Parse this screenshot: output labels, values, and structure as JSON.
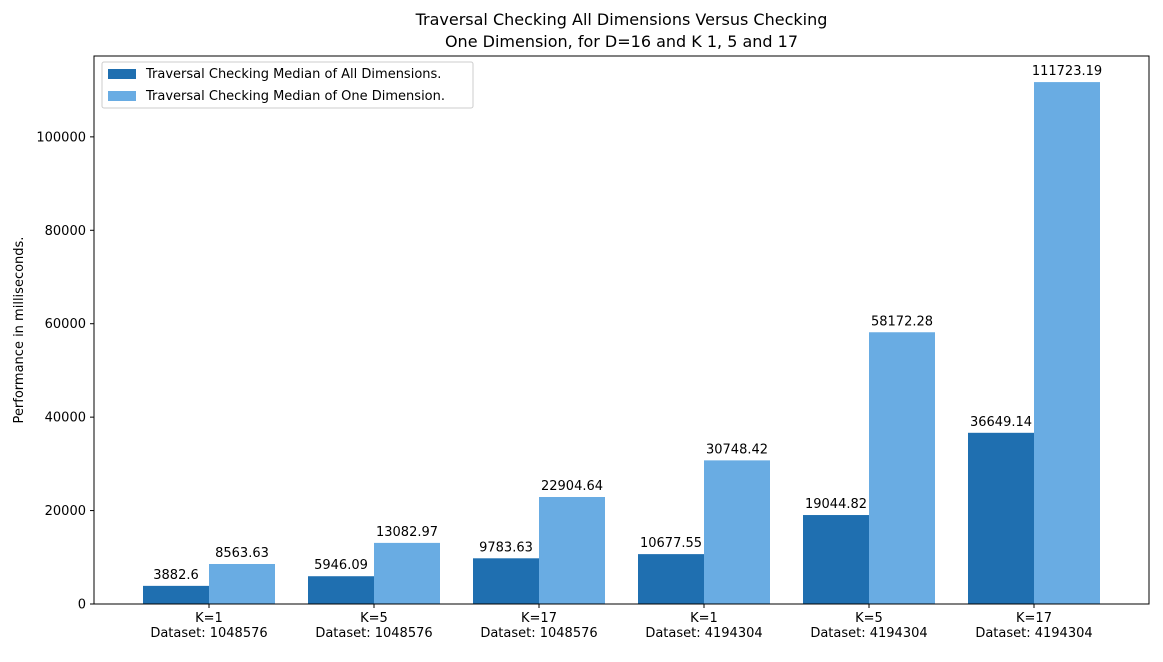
{
  "chart_data": {
    "type": "bar",
    "title": [
      "Traversal Checking All Dimensions Versus Checking",
      "One Dimension, for D=16 and K 1, 5 and 17"
    ],
    "xlabel": "",
    "ylabel": "Performance in milliseconds.",
    "ylim": [
      0,
      117309
    ],
    "y_ticks": [
      0,
      20000,
      40000,
      60000,
      80000,
      100000
    ],
    "categories": [
      [
        "K=1",
        "Dataset: 1048576"
      ],
      [
        "K=5",
        "Dataset: 1048576"
      ],
      [
        "K=17",
        "Dataset: 1048576"
      ],
      [
        "K=1",
        "Dataset: 4194304"
      ],
      [
        "K=5",
        "Dataset: 4194304"
      ],
      [
        "K=17",
        "Dataset: 4194304"
      ]
    ],
    "series": [
      {
        "name": "Traversal Checking Median of All Dimensions.",
        "color": "#1f6fb0",
        "values": [
          3882.6,
          5946.09,
          9783.63,
          10677.55,
          19044.82,
          36649.14
        ],
        "labels": [
          "3882.6",
          "5946.09",
          "9783.63",
          "10677.55",
          "19044.82",
          "36649.14"
        ]
      },
      {
        "name": "Traversal Checking Median of One Dimension.",
        "color": "#69ace3",
        "values": [
          8563.63,
          13082.97,
          22904.64,
          30748.42,
          58172.28,
          111723.19
        ],
        "labels": [
          "8563.63",
          "13082.97",
          "22904.64",
          "30748.42",
          "58172.28",
          "111723.19"
        ]
      }
    ],
    "grid": false,
    "legend_position": "top-left"
  }
}
